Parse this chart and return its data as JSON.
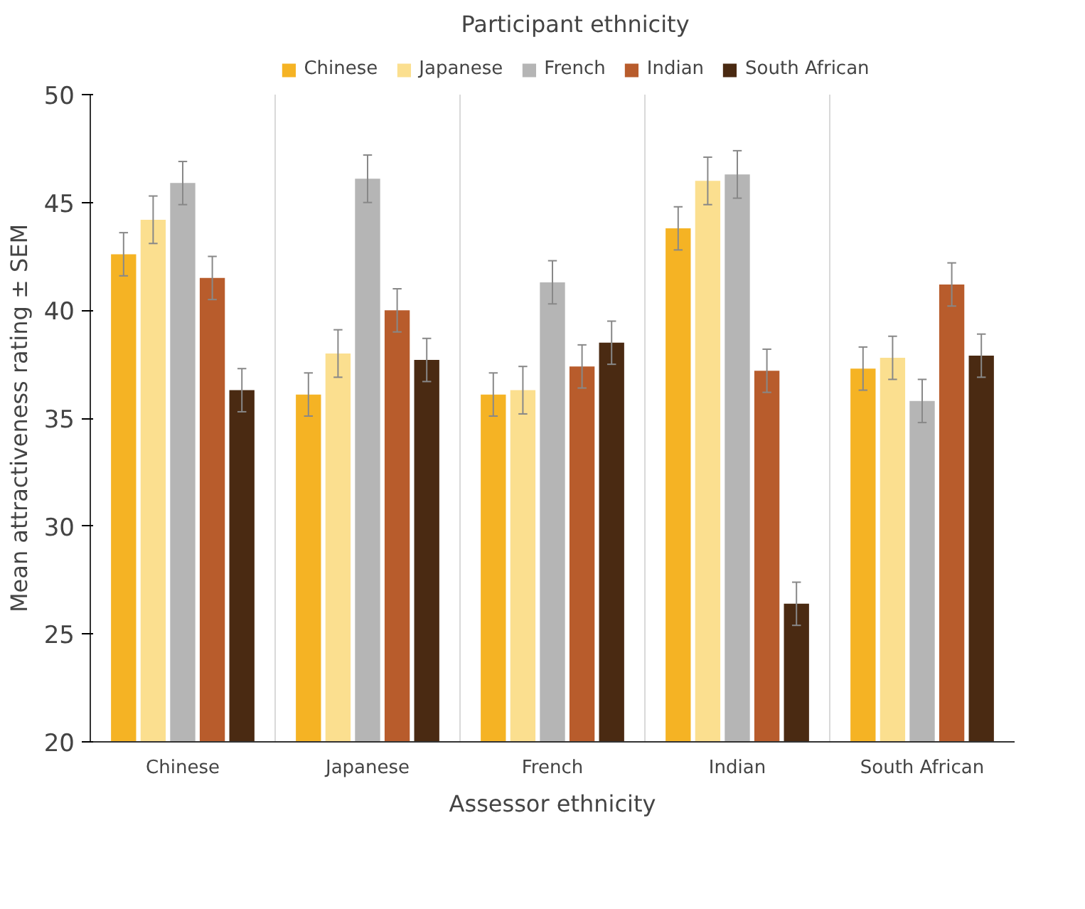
{
  "chart_data": {
    "type": "bar",
    "xlabel": "Assessor ethnicity",
    "ylabel": "Mean attractiveness rating ± SEM",
    "legend_title": "Participant ethnicity",
    "categories": [
      "Chinese",
      "Japanese",
      "French",
      "Indian",
      "South African"
    ],
    "series": [
      {
        "name": "Chinese",
        "color": "#f5b324",
        "values": [
          42.6,
          36.1,
          36.1,
          43.8,
          37.3
        ],
        "errors": [
          1.0,
          1.0,
          1.0,
          1.0,
          1.0
        ]
      },
      {
        "name": "Japanese",
        "color": "#fbdf8f",
        "values": [
          44.2,
          38.0,
          36.3,
          46.0,
          37.8
        ],
        "errors": [
          1.1,
          1.1,
          1.1,
          1.1,
          1.0
        ]
      },
      {
        "name": "French",
        "color": "#b5b5b5",
        "values": [
          45.9,
          46.1,
          41.3,
          46.3,
          35.8
        ],
        "errors": [
          1.0,
          1.1,
          1.0,
          1.1,
          1.0
        ]
      },
      {
        "name": "Indian",
        "color": "#b85c2c",
        "values": [
          41.5,
          40.0,
          37.4,
          37.2,
          41.2
        ],
        "errors": [
          1.0,
          1.0,
          1.0,
          1.0,
          1.0
        ]
      },
      {
        "name": "South African",
        "color": "#4a2a12",
        "values": [
          36.3,
          37.7,
          38.5,
          26.4,
          37.9
        ],
        "errors": [
          1.0,
          1.0,
          1.0,
          1.0,
          1.0
        ]
      }
    ],
    "ylim": [
      20,
      50
    ],
    "yticks": [
      20,
      25,
      30,
      35,
      40,
      45,
      50
    ],
    "grid": "x",
    "legend": "top"
  }
}
